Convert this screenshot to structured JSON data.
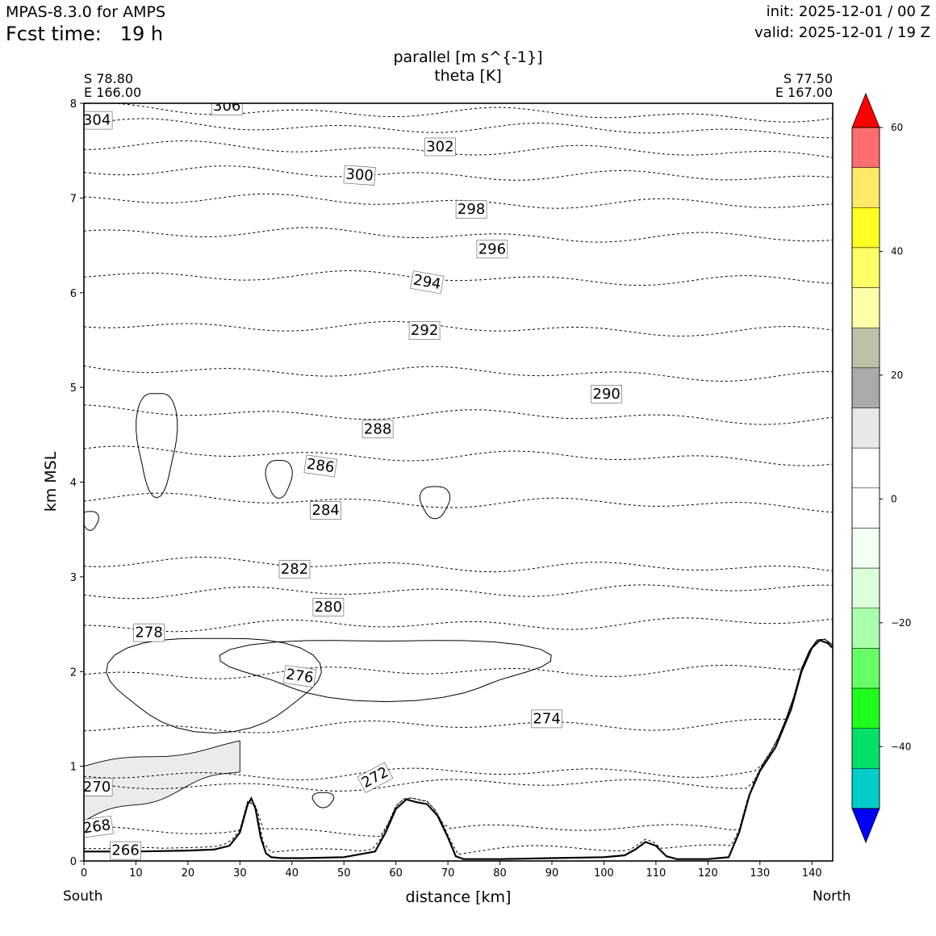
{
  "header": {
    "model": "MPAS-8.3.0 for AMPS",
    "fcst_time": "Fcst time:   19 h",
    "init": "init: 2025-12-01 / 00 Z",
    "valid": "valid: 2025-12-01 / 19 Z"
  },
  "chart_data": {
    "type": "cross-section contour",
    "title_line1": "parallel [m s^{-1}]",
    "title_line2": "theta [K]",
    "start_point": {
      "lat": "S 78.80",
      "lon": "E 166.00"
    },
    "end_point": {
      "lat": "S 77.50",
      "lon": "E 167.00"
    },
    "xlabel": "distance [km]",
    "ylabel": "km MSL",
    "x_ends": {
      "left": "South",
      "right": "North"
    },
    "xlim": [
      0,
      144
    ],
    "ylim": [
      0,
      8
    ],
    "xticks": [
      0,
      10,
      20,
      30,
      40,
      50,
      60,
      70,
      80,
      90,
      100,
      110,
      120,
      130,
      140
    ],
    "yticks": [
      0,
      1,
      2,
      3,
      4,
      5,
      6,
      7,
      8
    ],
    "theta_contours": [
      {
        "value": 266,
        "y0": 0.08,
        "label": "266",
        "lx": 8,
        "ly": 0.11,
        "rot": 0
      },
      {
        "value": 268,
        "y0": 0.3,
        "label": "268",
        "lx": 2.5,
        "ly": 0.36,
        "rot": -8
      },
      {
        "value": 270,
        "y0": 0.78,
        "label": "270",
        "lx": 2.5,
        "ly": 0.78,
        "rot": 0
      },
      {
        "value": 272,
        "y0": 0.9,
        "label": "272",
        "lx": 56,
        "ly": 0.88,
        "rot": -28
      },
      {
        "value": 274,
        "y0": 1.4,
        "label": "274",
        "lx": 89,
        "ly": 1.5,
        "rot": 0
      },
      {
        "value": 276,
        "y0": 1.97,
        "label": "276",
        "lx": 41.5,
        "ly": 1.95,
        "rot": 8
      },
      {
        "value": 278,
        "y0": 2.47,
        "label": "278",
        "lx": 12.5,
        "ly": 2.41,
        "rot": 0
      },
      {
        "value": 280,
        "y0": 2.82,
        "label": "280",
        "lx": 47,
        "ly": 2.68,
        "rot": 0
      },
      {
        "value": 282,
        "y0": 3.16,
        "label": "282",
        "lx": 40.5,
        "ly": 3.08,
        "rot": 0
      },
      {
        "value": 284,
        "y0": 3.83,
        "label": "284",
        "lx": 46.5,
        "ly": 3.7,
        "rot": 0
      },
      {
        "value": 286,
        "y0": 4.32,
        "label": "286",
        "lx": 45.5,
        "ly": 4.17,
        "rot": 8
      },
      {
        "value": 288,
        "y0": 4.75,
        "label": "288",
        "lx": 56.5,
        "ly": 4.56,
        "rot": 0
      },
      {
        "value": 290,
        "y0": 5.2,
        "label": "290",
        "lx": 100.5,
        "ly": 4.93,
        "rot": 0
      },
      {
        "value": 292,
        "y0": 5.67,
        "label": "292",
        "lx": 65.5,
        "ly": 5.6,
        "rot": 0
      },
      {
        "value": 294,
        "y0": 6.2,
        "label": "294",
        "lx": 66,
        "ly": 6.11,
        "rot": 10
      },
      {
        "value": 296,
        "y0": 6.65,
        "label": "296",
        "lx": 78.5,
        "ly": 6.46,
        "rot": 0
      },
      {
        "value": 298,
        "y0": 7.0,
        "label": "298",
        "lx": 74.5,
        "ly": 6.88,
        "rot": 0
      },
      {
        "value": 300,
        "y0": 7.29,
        "label": "300",
        "lx": 53,
        "ly": 7.24,
        "rot": 4
      },
      {
        "value": 302,
        "y0": 7.55,
        "label": "302",
        "lx": 68.5,
        "ly": 7.54,
        "rot": 0
      },
      {
        "value": 304,
        "y0": 7.78,
        "label": "304",
        "lx": 2.5,
        "ly": 7.82,
        "rot": 0
      },
      {
        "value": 306,
        "y0": 7.94,
        "label": "306",
        "lx": 27.5,
        "ly": 7.97,
        "rot": 0
      }
    ],
    "terrain_km": [
      [
        0,
        0.1
      ],
      [
        4,
        0.1
      ],
      [
        10,
        0.1
      ],
      [
        20,
        0.11
      ],
      [
        25,
        0.12
      ],
      [
        28,
        0.16
      ],
      [
        30,
        0.3
      ],
      [
        31.5,
        0.6
      ],
      [
        32.2,
        0.66
      ],
      [
        33,
        0.55
      ],
      [
        34,
        0.25
      ],
      [
        35,
        0.08
      ],
      [
        36,
        0.04
      ],
      [
        38,
        0.03
      ],
      [
        42,
        0.03
      ],
      [
        50,
        0.04
      ],
      [
        56,
        0.1
      ],
      [
        58,
        0.3
      ],
      [
        60,
        0.55
      ],
      [
        62,
        0.65
      ],
      [
        64,
        0.62
      ],
      [
        66,
        0.6
      ],
      [
        68,
        0.48
      ],
      [
        70,
        0.25
      ],
      [
        71.5,
        0.05
      ],
      [
        73,
        0.02
      ],
      [
        80,
        0.02
      ],
      [
        90,
        0.03
      ],
      [
        100,
        0.04
      ],
      [
        104,
        0.06
      ],
      [
        106,
        0.12
      ],
      [
        108,
        0.2
      ],
      [
        110,
        0.16
      ],
      [
        112,
        0.05
      ],
      [
        114,
        0.02
      ],
      [
        120,
        0.02
      ],
      [
        124,
        0.04
      ],
      [
        126,
        0.3
      ],
      [
        128,
        0.7
      ],
      [
        130,
        0.95
      ],
      [
        133,
        1.2
      ],
      [
        136,
        1.6
      ],
      [
        138,
        2.0
      ],
      [
        140,
        2.25
      ],
      [
        141.5,
        2.33
      ],
      [
        143,
        2.3
      ],
      [
        144,
        2.25
      ]
    ],
    "parallel_wind_contour_levels": [
      -10,
      0,
      10
    ],
    "colorbar": {
      "ticks": [
        60,
        40,
        20,
        0,
        -20,
        -40
      ],
      "vmin": -50,
      "vmax": 60,
      "extend": "both",
      "colors": [
        "#0000ff",
        "#00cccc",
        "#00e066",
        "#1eff1e",
        "#66ff66",
        "#aaffaa",
        "#dcffdc",
        "#f2fff2",
        "#ffffff",
        "#ffffff",
        "#e8e8e8",
        "#aaaaaa",
        "#c0bfa8",
        "#ffffaa",
        "#ffff66",
        "#ffff22",
        "#ffe966",
        "#ff6e6e",
        "#ff0000"
      ],
      "over_color": "#ff0000",
      "under_color": "#0000ff"
    }
  }
}
